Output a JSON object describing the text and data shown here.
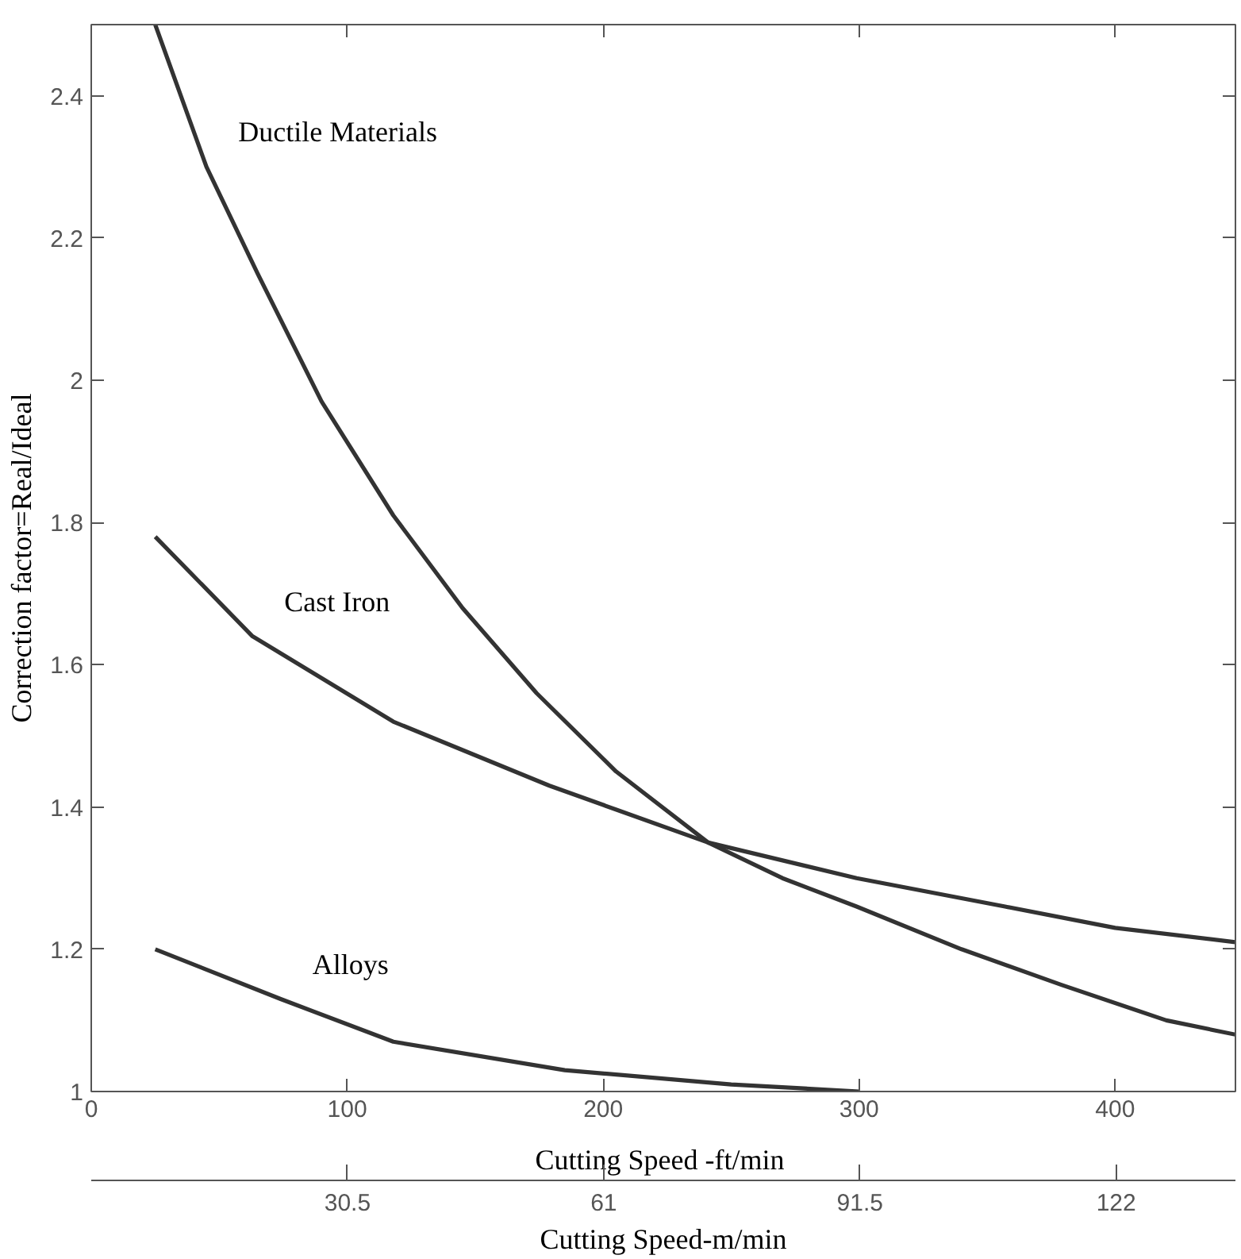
{
  "chart_data": {
    "type": "line",
    "xlabel": "Cutting Speed  -ft/min",
    "x2label": "Cutting Speed-m/min",
    "ylabel": "Correction factor=Real/Ideal",
    "xlim": [
      0,
      447
    ],
    "xticks": [
      0,
      100,
      200,
      300,
      400
    ],
    "x2lim": [
      0,
      136.2
    ],
    "x2ticks": [
      30.5,
      61,
      91.5,
      122
    ],
    "ylim": [
      1.0,
      2.5
    ],
    "yticks": [
      1.0,
      1.2,
      1.4,
      1.6,
      1.8,
      2.0,
      2.2,
      2.4
    ],
    "grid": false,
    "legend": false,
    "marker": "none",
    "line_style": "solid",
    "series": [
      {
        "name": "Ductile Materials",
        "color": "#333333",
        "x": [
          25,
          45,
          65,
          90,
          118,
          145,
          174,
          205,
          241,
          270,
          299,
          340,
          379,
          420,
          447
        ],
        "values": [
          2.5,
          2.3,
          2.15,
          1.97,
          1.81,
          1.68,
          1.56,
          1.45,
          1.35,
          1.3,
          1.26,
          1.2,
          1.15,
          1.1,
          1.08
        ]
      },
      {
        "name": "Cast Iron",
        "color": "#333333",
        "x": [
          25,
          63,
          118,
          179,
          241,
          299,
          357,
          400,
          447
        ],
        "values": [
          1.78,
          1.64,
          1.52,
          1.43,
          1.35,
          1.3,
          1.26,
          1.23,
          1.21
        ]
      },
      {
        "name": "Alloys",
        "color": "#333333",
        "x": [
          25,
          74,
          118,
          185,
          250,
          300
        ],
        "values": [
          1.2,
          1.13,
          1.07,
          1.03,
          1.01,
          1.0
        ]
      }
    ]
  }
}
